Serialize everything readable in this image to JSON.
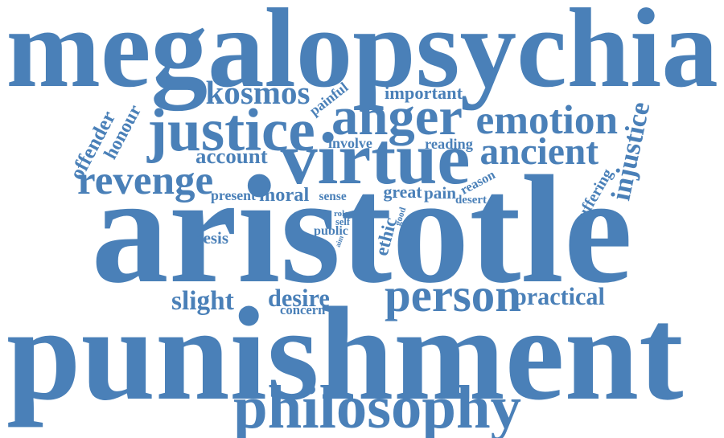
{
  "color": "#4a80b8",
  "words": [
    "megalopsychia",
    "aristotle",
    "punishment",
    "philosophy",
    "virtue",
    "justice",
    "anger",
    "emotion",
    "ancient",
    "kosmos",
    "revenge",
    "person",
    "injustice",
    "honour",
    "offender",
    "slight",
    "desire",
    "practical",
    "account",
    "moral",
    "present",
    "great",
    "pain",
    "ethic",
    "important",
    "painful",
    "involve",
    "reading",
    "reason",
    "desert",
    "suffering",
    "thesis",
    "concern",
    "sense",
    "public",
    "role",
    "self",
    "aim",
    "good"
  ]
}
